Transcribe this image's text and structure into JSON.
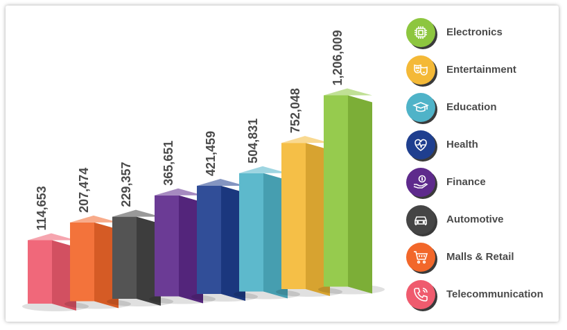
{
  "chart_data": {
    "type": "bar",
    "categories": [
      "Telecommunication",
      "Malls & Retail",
      "Automotive",
      "Finance",
      "Health",
      "Education",
      "Entertainment",
      "Electronics"
    ],
    "values": [
      114653,
      207474,
      229357,
      365651,
      421459,
      504831,
      752048,
      1206009
    ],
    "value_labels": [
      "114,653",
      "207,474",
      "229,357",
      "365,651",
      "421,459",
      "504,831",
      "752,048",
      "1,206,009"
    ],
    "colors": [
      "#ef5b6e",
      "#f2672a",
      "#454545",
      "#5e2a8c",
      "#1f3f8f",
      "#4fb3c8",
      "#f4b937",
      "#8dc63f"
    ],
    "style": "3d-bars",
    "grid": false,
    "legend_position": "right"
  },
  "legend": [
    {
      "label": "Electronics",
      "icon": "chip-icon",
      "color": "#8dc63f"
    },
    {
      "label": "Entertainment",
      "icon": "masks-icon",
      "color": "#f4b937"
    },
    {
      "label": "Education",
      "icon": "graduation-cap-icon",
      "color": "#4fb3c8"
    },
    {
      "label": "Health",
      "icon": "heartbeat-icon",
      "color": "#1f3f8f"
    },
    {
      "label": "Finance",
      "icon": "money-hand-icon",
      "color": "#5e2a8c"
    },
    {
      "label": "Automotive",
      "icon": "car-icon",
      "color": "#454545"
    },
    {
      "label": "Malls & Retail",
      "icon": "cart-icon",
      "color": "#f2672a"
    },
    {
      "label": "Telecommunication",
      "icon": "phone-icon",
      "color": "#ef5b6e"
    }
  ]
}
